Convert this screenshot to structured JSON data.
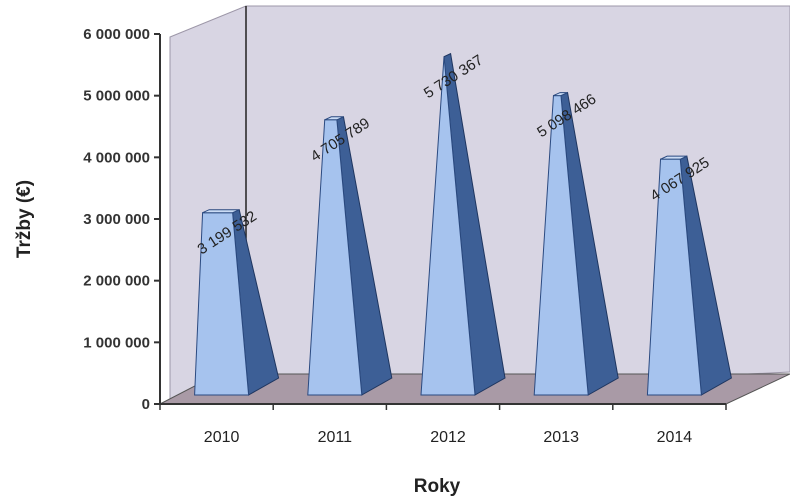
{
  "chart_data": {
    "type": "bar",
    "style": "3d-pyramid",
    "title": "",
    "xlabel": "Roky",
    "ylabel": "Tržby (€)",
    "categories": [
      "2010",
      "2011",
      "2012",
      "2013",
      "2014"
    ],
    "values": [
      3199532,
      4705789,
      5730367,
      5098466,
      4067925
    ],
    "data_labels": [
      "3 199 532",
      "4 705 789",
      "5 730 367",
      "5 098 466",
      "4 067 925"
    ],
    "ylim": [
      0,
      6000000
    ],
    "yticks": [
      0,
      1000000,
      2000000,
      3000000,
      4000000,
      5000000,
      6000000
    ],
    "ytick_labels": [
      "0",
      "1 000 000",
      "2 000 000",
      "3 000 000",
      "4 000 000",
      "5 000 000",
      "6 000 000"
    ],
    "grid": false,
    "legend": "none",
    "colors": {
      "bar_front": "#a6c3ee",
      "bar_side": "#3d5f96",
      "bar_top": "#cbdcf5",
      "back_wall": "#d8d5e3",
      "floor": "#a99aa6",
      "axis": "#333333"
    }
  }
}
